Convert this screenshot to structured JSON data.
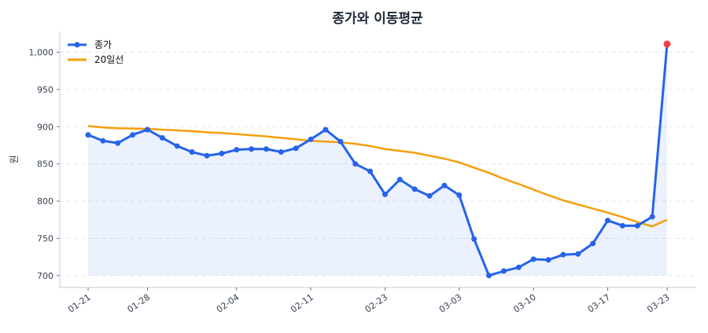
{
  "chart_data": {
    "type": "line",
    "title": "종가와 이동평균",
    "xlabel": "",
    "ylabel": "원",
    "ylim": [
      684,
      1028
    ],
    "yticks": [
      700,
      750,
      800,
      850,
      900,
      950,
      1000
    ],
    "ytick_labels": [
      "700",
      "750",
      "800",
      "850",
      "900",
      "950",
      "1,000"
    ],
    "x_ticks": [
      {
        "index": 0,
        "label": "01-21"
      },
      {
        "index": 4,
        "label": "01-28"
      },
      {
        "index": 10,
        "label": "02-04"
      },
      {
        "index": 15,
        "label": "02-11"
      },
      {
        "index": 20,
        "label": "02-23"
      },
      {
        "index": 25,
        "label": "03-03"
      },
      {
        "index": 30,
        "label": "03-10"
      },
      {
        "index": 35,
        "label": "03-17"
      },
      {
        "index": 39,
        "label": "03-23"
      }
    ],
    "grid": "horizontal dashed",
    "legend": "top-left",
    "series": [
      {
        "name": "종가",
        "color": "#2563eb",
        "markers": true,
        "fill": true,
        "values": [
          889,
          881,
          878,
          889,
          896,
          885,
          874,
          866,
          861,
          864,
          869,
          870,
          870,
          866,
          871,
          883,
          896,
          880,
          850,
          840,
          809,
          829,
          816,
          807,
          821,
          808,
          749,
          700,
          706,
          711,
          722,
          721,
          728,
          729,
          743,
          774,
          767,
          767,
          779,
          1011
        ],
        "last_point_color": "#ef4444"
      },
      {
        "name": "20일선",
        "color": "#f59e0b",
        "markers": false,
        "values": [
          901,
          899,
          898,
          897.5,
          897,
          896,
          895,
          894,
          892.5,
          891.5,
          890,
          888.5,
          887,
          885,
          883,
          881,
          880,
          879,
          877,
          874,
          870,
          867.5,
          865,
          861,
          857,
          852,
          845,
          838,
          830,
          823,
          815.5,
          808,
          801,
          795.5,
          790,
          784.5,
          778.5,
          772,
          766,
          775
        ]
      }
    ]
  }
}
